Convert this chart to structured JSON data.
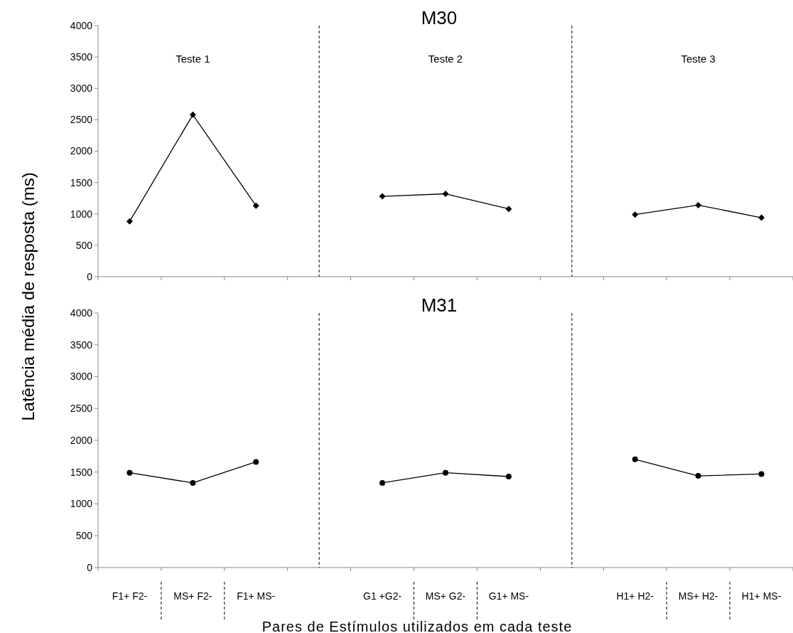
{
  "chart_data": [
    {
      "type": "line",
      "title": "M30",
      "ylabel": "Latência média de resposta (ms)",
      "annotations": [
        "Teste 1",
        "Teste 2",
        "Teste 3"
      ],
      "categories": [
        null,
        null,
        null,
        null,
        null,
        null,
        null,
        null,
        null,
        null,
        null
      ],
      "series": [
        {
          "color": "#000000",
          "values": [
            880,
            2580,
            1130,
            null,
            1280,
            1320,
            1080,
            null,
            990,
            1140,
            940
          ]
        }
      ],
      "ylim": [
        0,
        4000
      ],
      "yticks": [
        0,
        500,
        1000,
        1500,
        2000,
        2500,
        3000,
        3500,
        4000
      ],
      "tick_labels": "y",
      "marker": "diamond"
    },
    {
      "type": "line",
      "title": "M31",
      "xlabel": "Pares de Estímulos  utilizados  em  cada  teste",
      "categories": [
        "F1+ F2-",
        "MS+ F2-",
        "F1+ MS-",
        null,
        "G1 +G2-",
        "MS+ G2-",
        "G1+ MS-",
        null,
        "H1+ H2-",
        "MS+ H2-",
        "H1+ MS-"
      ],
      "series": [
        {
          "color": "#000000",
          "values": [
            1490,
            1330,
            1660,
            null,
            1330,
            1490,
            1430,
            null,
            1700,
            1440,
            1470
          ]
        }
      ],
      "ylim": [
        0,
        4000
      ],
      "yticks": [
        0,
        500,
        1000,
        1500,
        2000,
        2500,
        3000,
        3500,
        4000
      ],
      "marker": "circle"
    }
  ]
}
